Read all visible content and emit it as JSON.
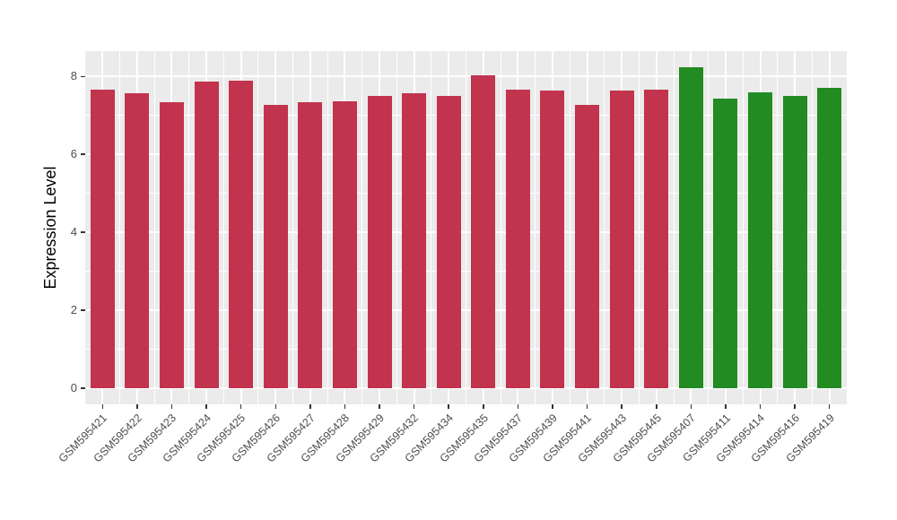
{
  "chart_data": {
    "type": "bar",
    "title": "",
    "xlabel": "",
    "ylabel": "Expression Level",
    "categories": [
      "GSM595421",
      "GSM595422",
      "GSM595423",
      "GSM595424",
      "GSM595425",
      "GSM595426",
      "GSM595427",
      "GSM595428",
      "GSM595429",
      "GSM595432",
      "GSM595434",
      "GSM595435",
      "GSM595437",
      "GSM595439",
      "GSM595441",
      "GSM595443",
      "GSM595445",
      "GSM595407",
      "GSM595411",
      "GSM595414",
      "GSM595416",
      "GSM595419"
    ],
    "values": [
      7.65,
      7.56,
      7.34,
      7.86,
      7.89,
      7.28,
      7.33,
      7.37,
      7.51,
      7.58,
      7.5,
      8.04,
      7.65,
      7.63,
      7.28,
      7.63,
      7.65,
      8.24,
      7.42,
      7.59,
      7.51,
      7.71
    ],
    "bar_color_keys": [
      "red",
      "red",
      "red",
      "red",
      "red",
      "red",
      "red",
      "red",
      "red",
      "red",
      "red",
      "red",
      "red",
      "red",
      "red",
      "red",
      "red",
      "green",
      "green",
      "green",
      "green",
      "green"
    ],
    "yticks": [
      0,
      2,
      4,
      6,
      8
    ],
    "ytick_labels": [
      "0",
      "2",
      "4",
      "6",
      "8"
    ],
    "minor_yticks": [
      1,
      3,
      5,
      7
    ],
    "ylim": [
      0,
      8.24
    ],
    "ylim_display": [
      -0.41,
      8.65
    ],
    "bar_width_fraction": 0.7,
    "grid": true,
    "legend": "none",
    "colors": {
      "red": "#C2334D",
      "green": "#228B22",
      "panel_bg": "#EBEBEB",
      "grid": "#FFFFFF",
      "tick_text": "#4D4D4D",
      "tick_mark": "#333333",
      "axis_title": "#000000",
      "background": "#FFFFFF"
    }
  }
}
